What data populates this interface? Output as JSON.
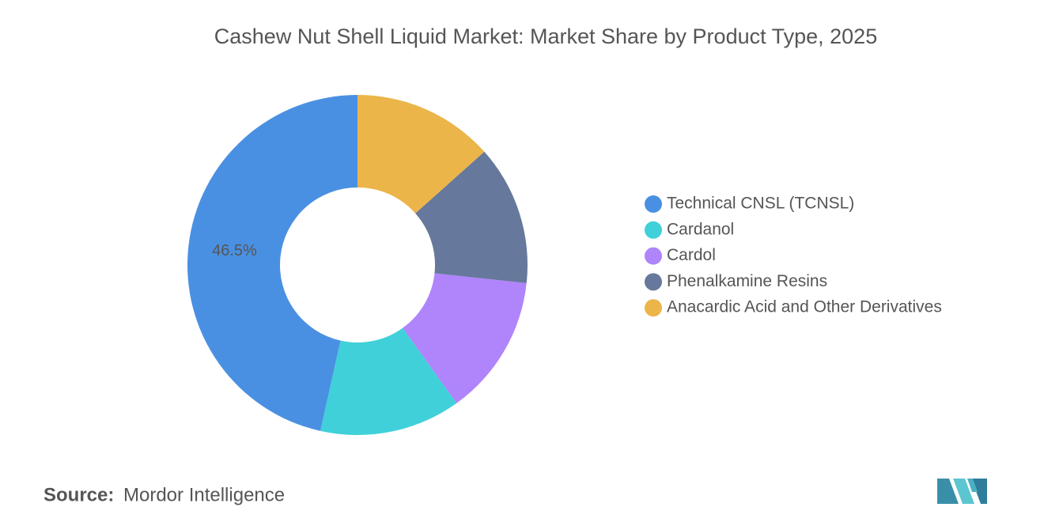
{
  "chart_data": {
    "type": "donut",
    "title": "Cashew Nut Shell Liquid Market: Market Share by Product Type, 2025",
    "categories": [
      "Technical CNSL (TCNSL)",
      "Cardanol",
      "Cardol",
      "Phenalkamine Resins",
      "Anacardic Acid and Other Derivatives"
    ],
    "values": [
      46.5,
      13.4,
      13.4,
      13.3,
      13.4
    ],
    "value_labels": [
      "46.5%",
      null,
      null,
      null,
      null
    ],
    "colors": [
      "#4a90e2",
      "#3fd0d9",
      "#b084fa",
      "#66789b",
      "#ebb54a"
    ],
    "legend": "right"
  },
  "source": {
    "label": "Source:",
    "text": "Mordor Intelligence"
  }
}
